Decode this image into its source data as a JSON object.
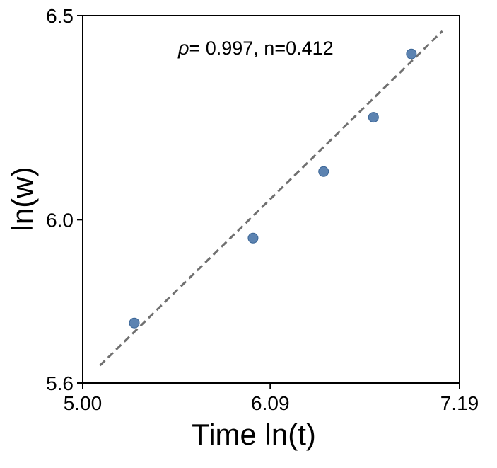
{
  "chart_data": {
    "type": "scatter",
    "title": "",
    "xlabel": "Time ln(t)",
    "ylabel": "ln(w)",
    "xlim": [
      5.0,
      7.19
    ],
    "ylim": [
      5.6,
      6.5
    ],
    "xticks": [
      5.0,
      6.09,
      7.19
    ],
    "xtick_labels": [
      "5.00",
      "6.09",
      "7.19"
    ],
    "yticks": [
      5.6,
      6.0,
      6.5
    ],
    "ytick_labels": [
      "5.6",
      "6.0",
      "6.5"
    ],
    "grid": false,
    "annotation": {
      "symbol": "ρ",
      "text": "= 0.997, n=0.412"
    },
    "series": [
      {
        "name": "data",
        "kind": "points",
        "color": "#4a76a8",
        "x": [
          5.3,
          5.99,
          6.4,
          6.69,
          6.91
        ],
        "y": [
          5.747,
          5.955,
          6.118,
          6.251,
          6.406
        ]
      },
      {
        "name": "fit",
        "kind": "line",
        "style": "dashed",
        "color": "#707070",
        "x": [
          5.1,
          7.09
        ],
        "y": [
          5.643,
          6.462
        ]
      }
    ]
  }
}
